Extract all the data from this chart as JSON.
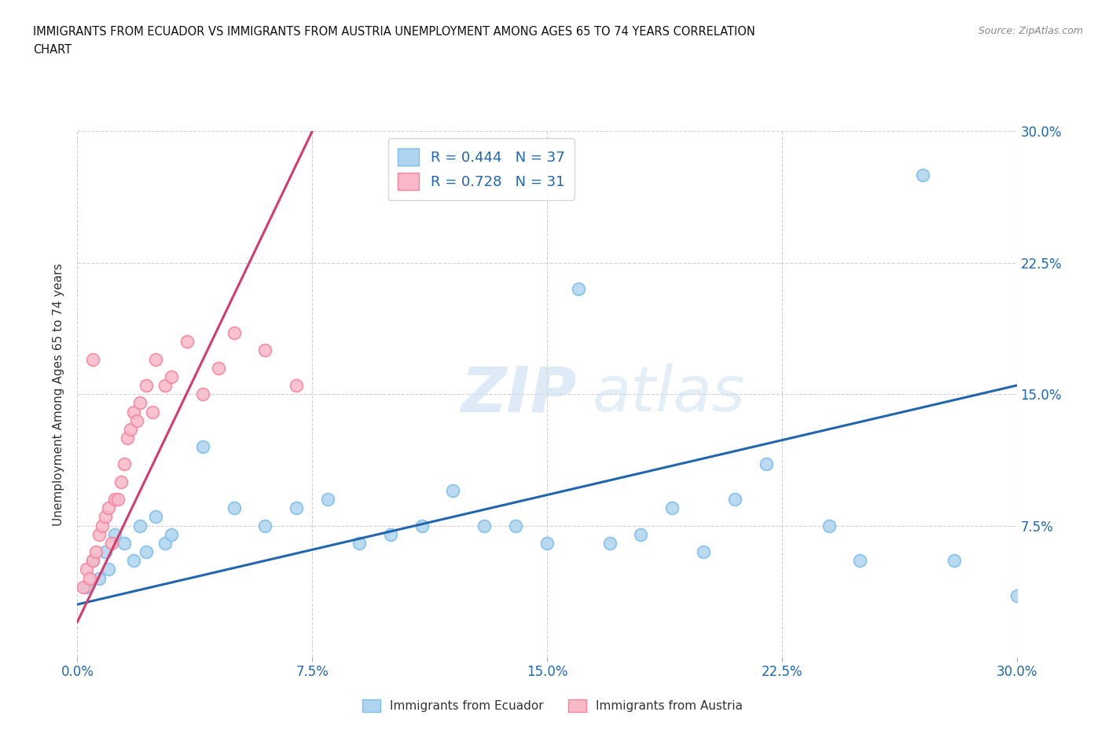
{
  "title_line1": "IMMIGRANTS FROM ECUADOR VS IMMIGRANTS FROM AUSTRIA UNEMPLOYMENT AMONG AGES 65 TO 74 YEARS CORRELATION",
  "title_line2": "CHART",
  "source_text": "Source: ZipAtlas.com",
  "ylabel": "Unemployment Among Ages 65 to 74 years",
  "xlim": [
    0.0,
    0.3
  ],
  "ylim": [
    0.0,
    0.3
  ],
  "xticks": [
    0.0,
    0.075,
    0.15,
    0.225,
    0.3
  ],
  "yticks": [
    0.075,
    0.15,
    0.225,
    0.3
  ],
  "xticklabels": [
    "0.0%",
    "7.5%",
    "15.0%",
    "22.5%",
    "30.0%"
  ],
  "yticklabels_right": [
    "7.5%",
    "15.0%",
    "22.5%",
    "30.0%"
  ],
  "ecuador_color": "#7dbde8",
  "ecuador_color_fill": "#aed4f0",
  "austria_color": "#f4849e",
  "austria_color_fill": "#f9b8c8",
  "trend_ecuador_color": "#2166ac",
  "trend_austria_color": "#d63b6e",
  "ecuador_R": 0.444,
  "ecuador_N": 37,
  "austria_R": 0.728,
  "austria_N": 31,
  "ecuador_x": [
    0.003,
    0.005,
    0.007,
    0.009,
    0.01,
    0.012,
    0.015,
    0.018,
    0.02,
    0.022,
    0.025,
    0.028,
    0.03,
    0.04,
    0.05,
    0.06,
    0.07,
    0.08,
    0.09,
    0.1,
    0.11,
    0.12,
    0.13,
    0.14,
    0.15,
    0.16,
    0.17,
    0.18,
    0.19,
    0.2,
    0.21,
    0.22,
    0.24,
    0.25,
    0.27,
    0.28,
    0.3
  ],
  "ecuador_y": [
    0.04,
    0.055,
    0.045,
    0.06,
    0.05,
    0.07,
    0.065,
    0.055,
    0.075,
    0.06,
    0.08,
    0.065,
    0.07,
    0.12,
    0.085,
    0.075,
    0.085,
    0.09,
    0.065,
    0.07,
    0.075,
    0.095,
    0.075,
    0.075,
    0.065,
    0.21,
    0.065,
    0.07,
    0.085,
    0.06,
    0.09,
    0.11,
    0.075,
    0.055,
    0.275,
    0.055,
    0.035
  ],
  "austria_x": [
    0.002,
    0.003,
    0.004,
    0.005,
    0.006,
    0.007,
    0.008,
    0.009,
    0.01,
    0.011,
    0.012,
    0.013,
    0.014,
    0.015,
    0.016,
    0.017,
    0.018,
    0.019,
    0.02,
    0.022,
    0.024,
    0.025,
    0.028,
    0.03,
    0.035,
    0.04,
    0.045,
    0.05,
    0.06,
    0.07,
    0.005
  ],
  "austria_y": [
    0.04,
    0.05,
    0.045,
    0.055,
    0.06,
    0.07,
    0.075,
    0.08,
    0.085,
    0.065,
    0.09,
    0.09,
    0.1,
    0.11,
    0.125,
    0.13,
    0.14,
    0.135,
    0.145,
    0.155,
    0.14,
    0.17,
    0.155,
    0.16,
    0.18,
    0.15,
    0.165,
    0.185,
    0.175,
    0.155,
    0.17
  ]
}
